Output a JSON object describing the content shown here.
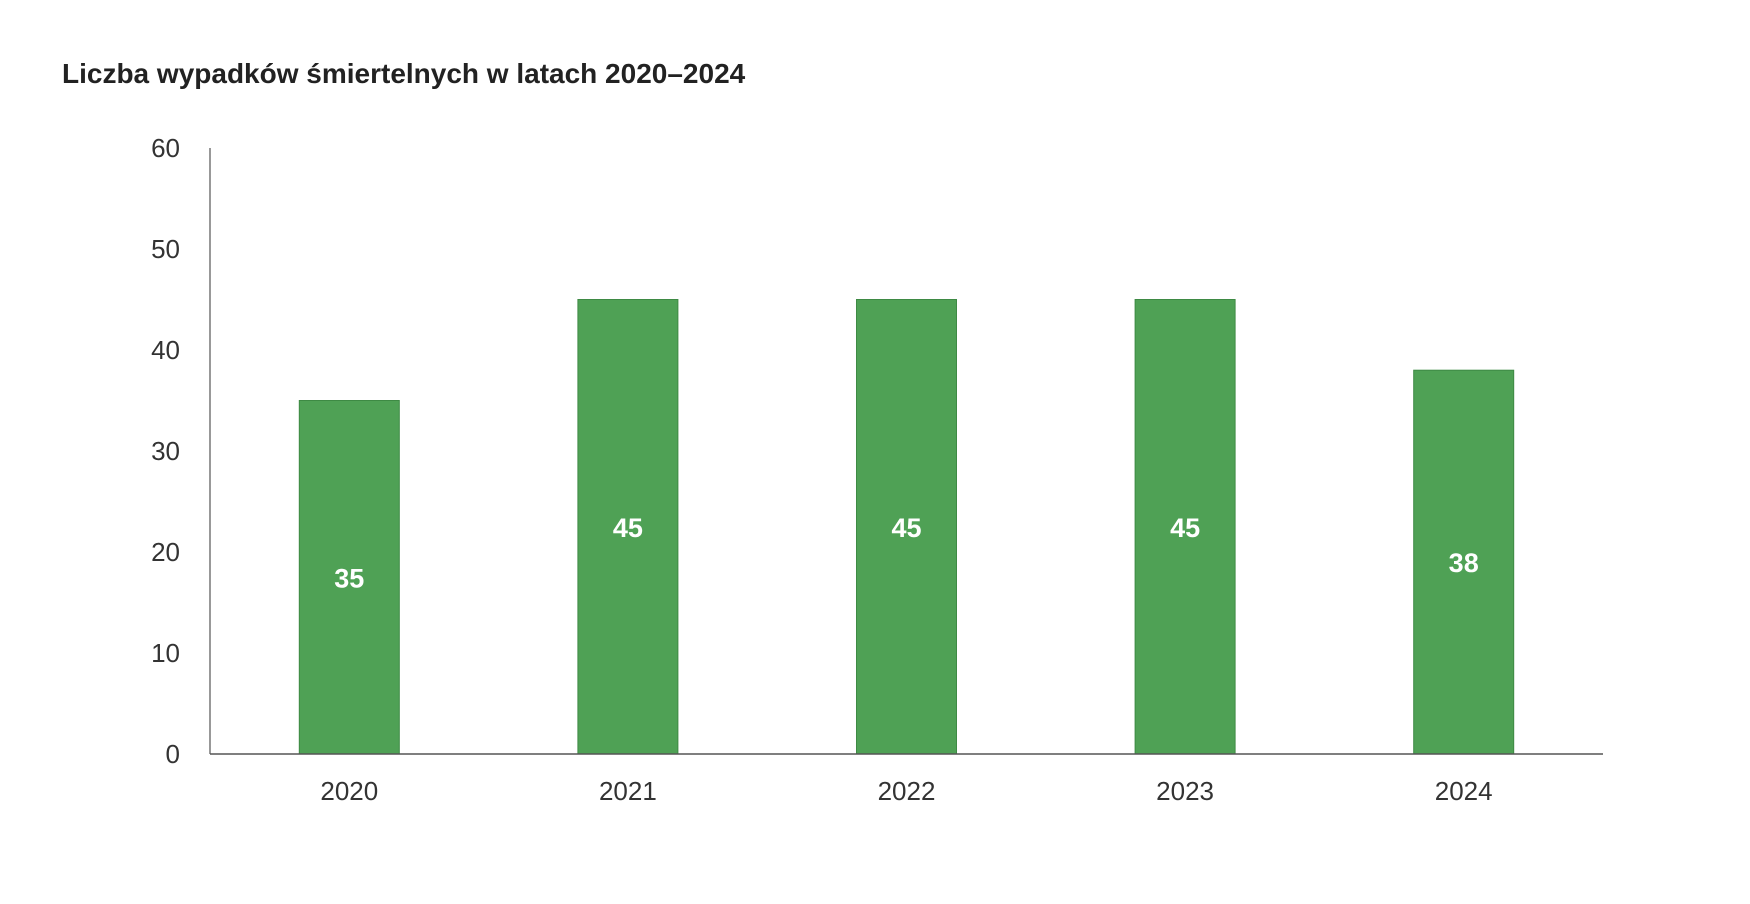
{
  "chart_data": {
    "type": "bar",
    "title": "Liczba wypadków śmiertelnych w latach 2020–2024",
    "categories": [
      "2020",
      "2021",
      "2022",
      "2023",
      "2024"
    ],
    "values": [
      35,
      45,
      45,
      45,
      38
    ],
    "data_labels": [
      "35",
      "45",
      "45",
      "45",
      "38"
    ],
    "yticks": [
      "0",
      "10",
      "20",
      "30",
      "40",
      "50",
      "60"
    ],
    "ylim": [
      0,
      60
    ],
    "xlabel": "",
    "ylabel": "",
    "grid": false,
    "legend": "none",
    "bar_color": "#4fa155",
    "bar_stroke": "#3e8a44"
  }
}
